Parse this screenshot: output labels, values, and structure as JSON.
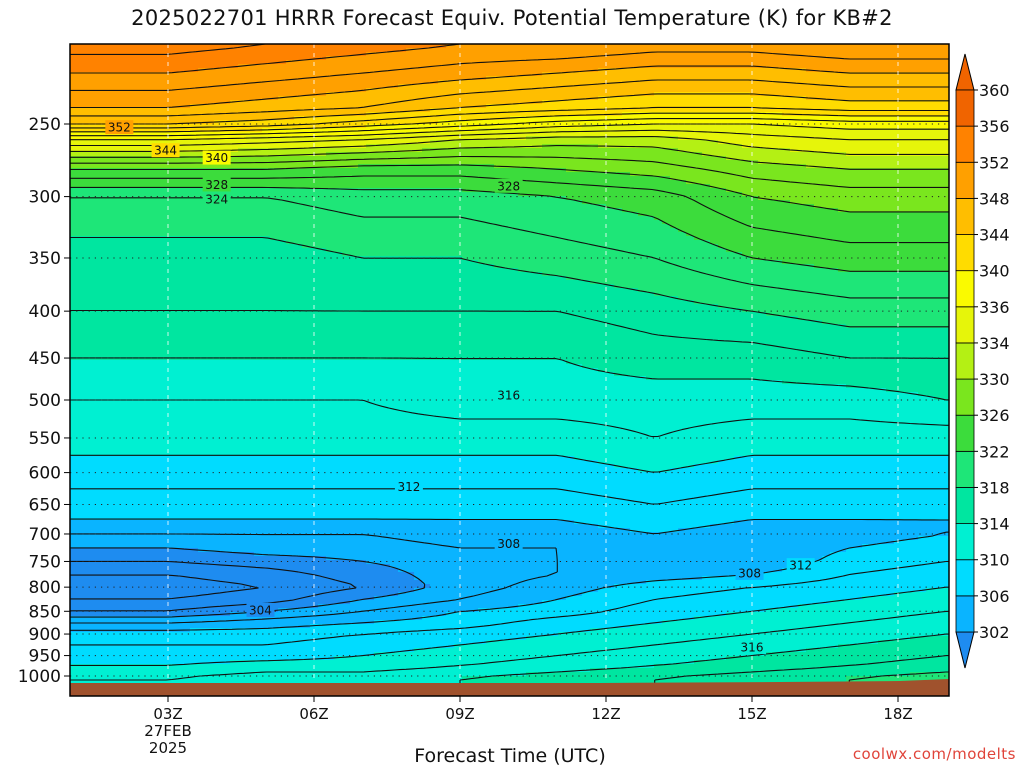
{
  "title": "2025022701 HRRR Forecast Equiv. Potential Temperature (K) for KB#2",
  "xlabel": "Forecast Time (UTC)",
  "credit": "coolwx.com/modelts",
  "chart_data": {
    "type": "heatmap",
    "title": "2025022701 HRRR Forecast Equiv. Potential Temperature (K) for KB#2",
    "xlabel": "Forecast Time (UTC)",
    "ylabel": "",
    "y_scale": "pressure (log, inverted)",
    "x_ticks": [
      {
        "label": "03Z",
        "sub1": "27FEB",
        "sub2": "2025",
        "hour": 3
      },
      {
        "label": "06Z",
        "sub1": "",
        "sub2": "",
        "hour": 6
      },
      {
        "label": "09Z",
        "sub1": "",
        "sub2": "",
        "hour": 9
      },
      {
        "label": "12Z",
        "sub1": "",
        "sub2": "",
        "hour": 12
      },
      {
        "label": "15Z",
        "sub1": "",
        "sub2": "",
        "hour": 15
      },
      {
        "label": "18Z",
        "sub1": "",
        "sub2": "",
        "hour": 18
      }
    ],
    "xlim": [
      1,
      19
    ],
    "y_ticks": [
      250,
      300,
      350,
      400,
      450,
      500,
      550,
      600,
      650,
      700,
      750,
      800,
      850,
      900,
      950,
      1000
    ],
    "ylim": [
      1010,
      200
    ],
    "colorbar": {
      "levels": [
        302,
        306,
        310,
        314,
        318,
        322,
        326,
        330,
        334,
        336,
        340,
        344,
        348,
        352,
        356,
        360
      ],
      "colors": [
        "#1e8cf0",
        "#0ab4ff",
        "#00dcff",
        "#00f0d2",
        "#00e6a0",
        "#1ee678",
        "#3cdc3c",
        "#7ae61e",
        "#b4f014",
        "#e6f50a",
        "#fafa00",
        "#ffdc00",
        "#ffbe00",
        "#ffa000",
        "#ff8200",
        "#f06400"
      ]
    },
    "ground_color": "#a0522d",
    "contour_labels": [
      {
        "text": "352",
        "hour": 2.0,
        "p": 252
      },
      {
        "text": "344",
        "hour": 2.95,
        "p": 267
      },
      {
        "text": "340",
        "hour": 4.0,
        "p": 272
      },
      {
        "text": "328",
        "hour": 4.0,
        "p": 291
      },
      {
        "text": "328",
        "hour": 10.0,
        "p": 292
      },
      {
        "text": "324",
        "hour": 4.0,
        "p": 302
      },
      {
        "text": "316",
        "hour": 10.0,
        "p": 494
      },
      {
        "text": "312",
        "hour": 7.95,
        "p": 621
      },
      {
        "text": "308",
        "hour": 10.0,
        "p": 717
      },
      {
        "text": "308",
        "hour": 14.95,
        "p": 772
      },
      {
        "text": "312",
        "hour": 16.0,
        "p": 757
      },
      {
        "text": "304",
        "hour": 4.9,
        "p": 847
      },
      {
        "text": "316",
        "hour": 15.0,
        "p": 930
      }
    ],
    "profile_levels_hpa": [
      1005,
      975,
      950,
      925,
      900,
      875,
      850,
      825,
      800,
      775,
      750,
      725,
      700,
      675,
      650,
      625,
      600,
      550,
      500,
      450,
      400,
      350,
      300,
      280,
      260,
      250,
      240,
      220,
      205
    ],
    "profile_hours": [
      1,
      3,
      5,
      7,
      9,
      11,
      13,
      15,
      17,
      19
    ],
    "theta_e": [
      [
        316,
        314,
        313,
        312,
        311,
        308,
        304,
        302,
        301,
        302,
        304,
        306,
        308,
        310,
        311,
        312,
        313,
        315,
        316,
        318,
        320,
        321,
        324,
        330,
        340,
        348,
        352,
        356,
        359
      ],
      [
        316,
        314,
        313,
        312,
        311,
        308,
        304,
        302,
        301,
        302,
        304,
        306,
        308,
        310,
        311,
        312,
        313,
        315,
        316,
        318,
        320,
        321,
        324,
        330,
        340,
        348,
        352,
        356,
        359
      ],
      [
        317,
        315,
        313,
        312,
        311,
        309,
        306,
        303,
        302,
        303,
        305,
        307,
        308,
        310,
        311,
        312,
        313,
        315,
        316,
        318,
        320,
        321,
        324,
        330,
        339,
        347,
        351,
        355,
        358
      ],
      [
        317,
        315,
        314,
        313,
        312,
        310,
        308,
        306,
        304,
        305,
        306,
        307,
        308,
        310,
        311,
        312,
        313,
        315,
        316,
        318,
        320,
        322,
        325,
        329,
        338,
        345,
        350,
        354,
        357
      ],
      [
        318,
        316,
        315,
        314,
        313,
        311,
        310,
        308,
        307,
        307,
        307,
        308,
        309,
        310,
        311,
        312,
        313,
        315,
        317,
        318,
        320,
        322,
        325,
        329,
        336,
        343,
        348,
        353,
        356
      ],
      [
        319,
        317,
        316,
        315,
        314,
        313,
        311,
        310,
        309,
        308,
        308,
        308,
        309,
        310,
        311,
        312,
        313,
        315,
        317,
        318,
        320,
        323,
        326,
        330,
        335,
        341,
        347,
        352,
        356
      ],
      [
        320,
        318,
        317,
        316,
        315,
        314,
        313,
        312,
        311,
        309,
        309,
        309,
        310,
        311,
        312,
        313,
        314,
        316,
        317,
        319,
        321,
        324,
        327,
        331,
        335,
        340,
        346,
        351,
        355
      ],
      [
        321,
        319,
        318,
        317,
        316,
        315,
        314,
        313,
        312,
        310,
        308,
        308,
        309,
        310,
        311,
        312,
        313,
        315,
        317,
        319,
        322,
        326,
        330,
        333,
        337,
        340,
        346,
        351,
        355
      ],
      [
        322,
        320,
        319,
        318,
        317,
        316,
        315,
        314,
        313,
        312,
        311,
        310,
        309,
        310,
        311,
        312,
        313,
        315,
        317,
        320,
        323,
        327,
        331,
        334,
        338,
        341,
        347,
        352,
        356
      ],
      [
        323,
        321,
        320,
        319,
        318,
        317,
        316,
        315,
        314,
        313,
        312,
        311,
        310,
        310,
        311,
        312,
        313,
        315,
        318,
        320,
        323,
        327,
        331,
        334,
        338,
        341,
        347,
        352,
        356
      ]
    ]
  }
}
